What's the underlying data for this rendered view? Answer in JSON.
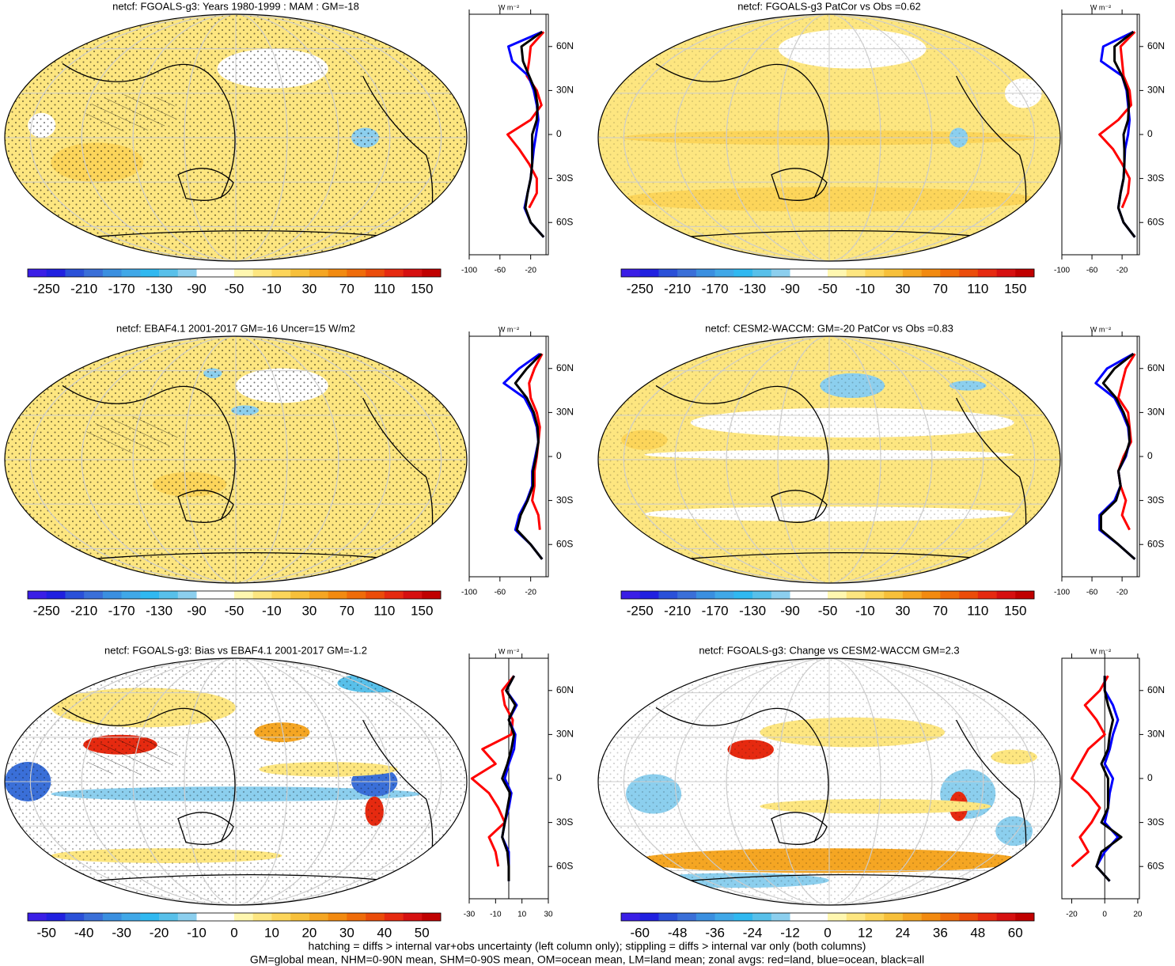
{
  "colorbar_colors": [
    "#3a1ee6",
    "#2020e0",
    "#2a50d8",
    "#3a6fd8",
    "#3a8fe0",
    "#40a8e8",
    "#30b8f0",
    "#58c0ea",
    "#8ccfee",
    "#ffffff",
    "#ffffff",
    "#fff7b0",
    "#fde680",
    "#fcd55a",
    "#f7c03a",
    "#f5a623",
    "#f28a10",
    "#ef6c0a",
    "#eb4c0a",
    "#e62a10",
    "#d61010",
    "#c00000"
  ],
  "footnotes": [
    "hatching = diffs > internal var+obs uncertainty (left column only); stippling = diffs > internal var only (both columns)",
    "GM=global mean, NHM=0-90N mean, SHM=0-90S mean, OM=ocean mean, LM=land mean; zonal avgs: red=land, blue=ocean, black=all"
  ],
  "chart_data": [
    {
      "type": "line",
      "title": "netcf: FGOALS-g3: Years 1980-1999 : MAM : GM=-18",
      "unit": "W m⁻²",
      "colorbar": [
        -250,
        -210,
        -170,
        -130,
        -90,
        -50,
        -10,
        30,
        70,
        110,
        150
      ],
      "lat": [
        70,
        60,
        50,
        40,
        30,
        20,
        10,
        0,
        -10,
        -20,
        -30,
        -40,
        -50,
        -60,
        -70
      ],
      "xlim": [
        -100,
        3
      ],
      "xticks": [
        -100,
        -60,
        -20
      ],
      "ylim": [
        -82,
        82
      ],
      "yticks": [
        {
          "value": 60,
          "label": "60N"
        },
        {
          "value": 30,
          "label": "30N"
        },
        0,
        {
          "value": -30,
          "label": "30S"
        },
        {
          "value": -60,
          "label": "60S"
        }
      ],
      "series": [
        {
          "color": "#ff0000",
          "values": [
            -3,
            -20,
            -22,
            -25,
            -12,
            -6,
            -20,
            -50,
            -35,
            -22,
            -12,
            -12,
            -22,
            null,
            null
          ]
        },
        {
          "color": "#0000ff",
          "values": [
            -5,
            -49,
            -44,
            -23,
            -16,
            -12,
            -10,
            -13,
            -16,
            -18,
            -20,
            -24,
            -28,
            -20,
            -3
          ]
        },
        {
          "color": "#000000",
          "values": [
            -5,
            -32,
            -30,
            -22,
            -14,
            -11,
            -12,
            -18,
            -18,
            -18,
            -20,
            -24,
            -27,
            -20,
            -3
          ]
        }
      ]
    },
    {
      "type": "line",
      "title": "netcf: FGOALS-g3 PatCor vs Obs =0.62",
      "unit": "W m⁻²",
      "colorbar": [
        -250,
        -210,
        -170,
        -130,
        -90,
        -50,
        -10,
        30,
        70,
        110,
        150
      ],
      "lat": [
        70,
        60,
        50,
        40,
        30,
        20,
        10,
        0,
        -10,
        -20,
        -30,
        -40,
        -50,
        -60,
        -70
      ],
      "xlim": [
        -100,
        3
      ],
      "xticks": [
        -100,
        -60,
        -20
      ],
      "ylim": [
        -82,
        82
      ],
      "yticks": [
        {
          "value": 60,
          "label": "60N"
        },
        {
          "value": 30,
          "label": "30N"
        },
        0,
        {
          "value": -30,
          "label": "30S"
        },
        {
          "value": -60,
          "label": "60S"
        }
      ],
      "series": [
        {
          "color": "#ff0000",
          "values": [
            -3,
            -22,
            -20,
            -18,
            -10,
            -8,
            -25,
            -50,
            -32,
            -20,
            -10,
            -12,
            -20,
            null,
            null
          ]
        },
        {
          "color": "#0000ff",
          "values": [
            -5,
            -45,
            -48,
            -20,
            -14,
            -12,
            -10,
            -12,
            -16,
            -17,
            -18,
            -22,
            -25,
            -18,
            -3
          ]
        },
        {
          "color": "#000000",
          "values": [
            -5,
            -30,
            -30,
            -20,
            -13,
            -11,
            -12,
            -18,
            -17,
            -17,
            -18,
            -22,
            -25,
            -18,
            -3
          ]
        }
      ]
    },
    {
      "type": "line",
      "title": "netcf: EBAF4.1 2001-2017 GM=-16 Uncer=15 W/m2",
      "unit": "W m⁻²",
      "colorbar": [
        -250,
        -210,
        -170,
        -130,
        -90,
        -50,
        -10,
        30,
        70,
        110,
        150
      ],
      "lat": [
        70,
        60,
        50,
        40,
        30,
        20,
        10,
        0,
        -10,
        -20,
        -30,
        -40,
        -50,
        -60,
        -70
      ],
      "xlim": [
        -100,
        3
      ],
      "xticks": [
        -100,
        -60,
        -20
      ],
      "ylim": [
        -82,
        82
      ],
      "yticks": [
        {
          "value": 60,
          "label": "60N"
        },
        {
          "value": 30,
          "label": "30N"
        },
        0,
        {
          "value": -30,
          "label": "30S"
        },
        {
          "value": -60,
          "label": "60S"
        }
      ],
      "series": [
        {
          "color": "#ff0000",
          "values": [
            -5,
            -15,
            -22,
            -20,
            -12,
            -8,
            -10,
            -12,
            -15,
            -15,
            -18,
            -10,
            -8,
            null,
            null
          ]
        },
        {
          "color": "#0000ff",
          "values": [
            -8,
            -35,
            -55,
            -28,
            -18,
            -12,
            -10,
            -14,
            -18,
            -18,
            -25,
            -35,
            -40,
            -20,
            -5
          ]
        },
        {
          "color": "#000000",
          "values": [
            -6,
            -25,
            -40,
            -25,
            -16,
            -11,
            -10,
            -13,
            -17,
            -17,
            -24,
            -33,
            -38,
            -20,
            -5
          ]
        }
      ]
    },
    {
      "type": "line",
      "title": "netcf: CESM2-WACCM: GM=-20 PatCor vs Obs =0.83",
      "unit": "W m⁻²",
      "colorbar": [
        -250,
        -210,
        -170,
        -130,
        -90,
        -50,
        -10,
        30,
        70,
        110,
        150
      ],
      "lat": [
        70,
        60,
        50,
        40,
        30,
        20,
        10,
        0,
        -10,
        -20,
        -30,
        -40,
        -50,
        -60,
        -70
      ],
      "xlim": [
        -100,
        3
      ],
      "xticks": [
        -100,
        -60,
        -20
      ],
      "ylim": [
        -82,
        82
      ],
      "yticks": [
        {
          "value": 60,
          "label": "60N"
        },
        {
          "value": 30,
          "label": "30N"
        },
        0,
        {
          "value": -30,
          "label": "30S"
        },
        {
          "value": -60,
          "label": "60S"
        }
      ],
      "series": [
        {
          "color": "#ff0000",
          "values": [
            -3,
            -15,
            -20,
            -25,
            -12,
            -10,
            -8,
            -18,
            -25,
            -22,
            -15,
            -20,
            -10,
            null,
            null
          ]
        },
        {
          "color": "#0000ff",
          "values": [
            -5,
            -40,
            -55,
            -30,
            -20,
            -12,
            -10,
            -15,
            -25,
            -22,
            -30,
            -50,
            -50,
            -25,
            -3
          ]
        },
        {
          "color": "#000000",
          "values": [
            -5,
            -30,
            -45,
            -28,
            -18,
            -11,
            -10,
            -16,
            -25,
            -22,
            -28,
            -48,
            -48,
            -25,
            -3
          ]
        }
      ]
    },
    {
      "type": "line",
      "title": "netcf: FGOALS-g3: Bias vs EBAF4.1 2001-2017 GM=-1.2",
      "unit": "W m⁻²",
      "colorbar": [
        -50,
        -40,
        -30,
        -20,
        -10,
        0,
        10,
        20,
        30,
        40,
        50
      ],
      "lat": [
        70,
        60,
        50,
        40,
        30,
        20,
        10,
        0,
        -10,
        -20,
        -30,
        -40,
        -50,
        -60,
        -70
      ],
      "xlim": [
        -30,
        30
      ],
      "xticks": [
        -30,
        -10,
        10,
        30
      ],
      "ylim": [
        -82,
        82
      ],
      "yticks": [
        {
          "value": 60,
          "label": "60N"
        },
        {
          "value": 30,
          "label": "30N"
        },
        0,
        {
          "value": -30,
          "label": "30S"
        },
        {
          "value": -60,
          "label": "60S"
        }
      ],
      "series": [
        {
          "color": "#ff0000",
          "values": [
            4,
            -5,
            -3,
            3,
            2,
            -20,
            -10,
            -28,
            -15,
            -8,
            -3,
            -15,
            -10,
            -8,
            null
          ]
        },
        {
          "color": "#0000ff",
          "values": [
            4,
            -2,
            6,
            0,
            5,
            4,
            0,
            -3,
            2,
            0,
            -3,
            -5,
            0,
            0,
            0
          ]
        },
        {
          "color": "#000000",
          "values": [
            4,
            -2,
            5,
            0,
            4,
            2,
            -1,
            -5,
            1,
            -1,
            -3,
            -5,
            -1,
            0,
            0
          ]
        }
      ]
    },
    {
      "type": "line",
      "title": "netcf: FGOALS-g3: Change vs CESM2-WACCM GM=2.3",
      "unit": "W m⁻²",
      "colorbar": [
        -60,
        -48,
        -36,
        -24,
        -12,
        0,
        12,
        24,
        36,
        48,
        60
      ],
      "lat": [
        70,
        60,
        50,
        40,
        30,
        20,
        10,
        0,
        -10,
        -20,
        -30,
        -40,
        -50,
        -60,
        -70
      ],
      "xlim": [
        -26,
        21
      ],
      "xticks": [
        -20,
        0,
        20
      ],
      "ylim": [
        -82,
        82
      ],
      "yticks": [
        {
          "value": 60,
          "label": "60N"
        },
        {
          "value": 30,
          "label": "30N"
        },
        0,
        {
          "value": -30,
          "label": "30S"
        },
        {
          "value": -60,
          "label": "60S"
        }
      ],
      "series": [
        {
          "color": "#ff0000",
          "values": [
            2,
            -3,
            -12,
            -5,
            0,
            -10,
            -15,
            -20,
            -10,
            -3,
            -8,
            -15,
            -10,
            -20,
            null
          ]
        },
        {
          "color": "#0000ff",
          "values": [
            0,
            0,
            5,
            8,
            5,
            3,
            0,
            5,
            3,
            2,
            0,
            8,
            0,
            -5,
            3
          ]
        },
        {
          "color": "#000000",
          "values": [
            0,
            0,
            2,
            5,
            3,
            2,
            -2,
            2,
            2,
            2,
            -2,
            10,
            -2,
            -5,
            3
          ]
        }
      ]
    }
  ]
}
